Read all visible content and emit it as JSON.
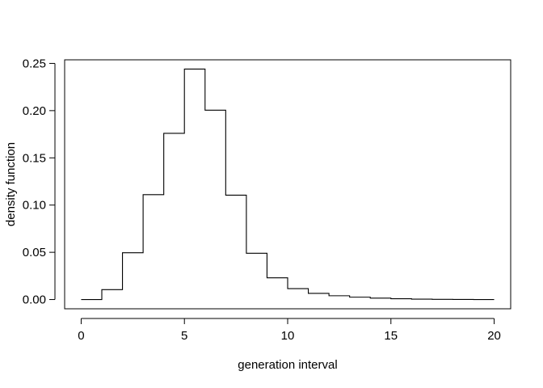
{
  "chart_data": {
    "type": "line",
    "step": "post",
    "title": "",
    "xlabel": "generation interval",
    "ylabel": "density function",
    "xlim": [
      -0.8,
      20.8
    ],
    "ylim": [
      -0.0098,
      0.2538
    ],
    "x_ticks": [
      0,
      5,
      10,
      15,
      20
    ],
    "x_tick_labels": [
      "0",
      "5",
      "10",
      "15",
      "20"
    ],
    "y_ticks": [
      0,
      0.05,
      0.1,
      0.15,
      0.2,
      0.25
    ],
    "y_tick_labels": [
      "0.00",
      "0.05",
      "0.10",
      "0.15",
      "0.20",
      "0.25"
    ],
    "grid": false,
    "box": true,
    "line_color": "#000000",
    "x": [
      0,
      1,
      2,
      3,
      4,
      5,
      6,
      7,
      8,
      9,
      10,
      11,
      12,
      13,
      14,
      15,
      16,
      17,
      18,
      19,
      20
    ],
    "y": [
      0.0,
      0.0105,
      0.0495,
      0.111,
      0.176,
      0.244,
      0.2005,
      0.1105,
      0.049,
      0.023,
      0.0115,
      0.0065,
      0.004,
      0.0025,
      0.0015,
      0.0008,
      0.0004,
      0.0002,
      0.0001,
      0.0,
      0.0
    ]
  }
}
